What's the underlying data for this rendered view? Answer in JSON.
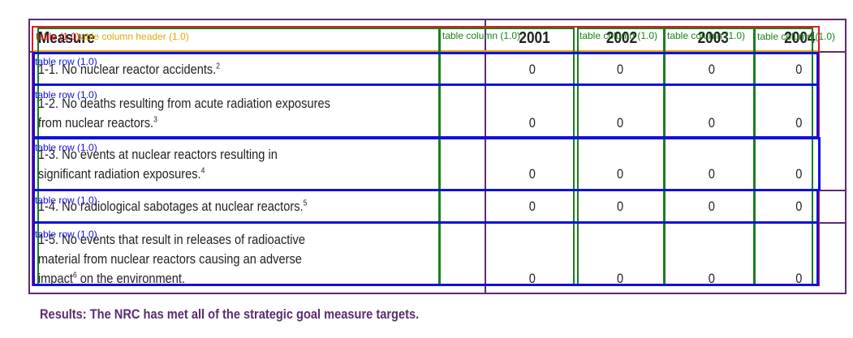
{
  "table": {
    "header": {
      "measure": "Measure",
      "years": [
        "2001",
        "2002",
        "2003",
        "2004"
      ]
    },
    "rows": [
      {
        "lines": [
          "1-1. No nuclear reactor accidents."
        ],
        "footnote": "2",
        "values": [
          "0",
          "0",
          "0",
          "0"
        ]
      },
      {
        "lines": [
          "1-2. No deaths resulting from acute radiation exposures",
          "from nuclear reactors."
        ],
        "footnote": "3",
        "values": [
          "0",
          "0",
          "0",
          "0"
        ]
      },
      {
        "lines": [
          "1-3. No events at nuclear reactors resulting in",
          "significant radiation exposures."
        ],
        "footnote": "4",
        "values": [
          "0",
          "0",
          "0",
          "0"
        ]
      },
      {
        "lines": [
          "1-4. No radiological sabotages at nuclear reactors."
        ],
        "footnote": "5",
        "values": [
          "0",
          "0",
          "0",
          "0"
        ]
      },
      {
        "lines": [
          "1-5. No events that result in releases of radioactive",
          "material from nuclear reactors causing an adverse",
          "impact",
          " on the environment."
        ],
        "footnote": "6",
        "values": [
          "0",
          "0",
          "0",
          "0"
        ]
      }
    ]
  },
  "results": "Results:  The NRC has met all of the strategic goal measure targets.",
  "annotations": {
    "table_label": "table (1.0)",
    "column_header_label": "table column header (1.0)",
    "column_label": "table column (1.0)",
    "row_label": "table row (1.0)"
  },
  "colors": {
    "table_box": "#e01b24",
    "column_box": "#1a7f1a",
    "row_box": "#1010e0",
    "header_box": "#e5a50a",
    "frame": "#5b2c6f"
  }
}
